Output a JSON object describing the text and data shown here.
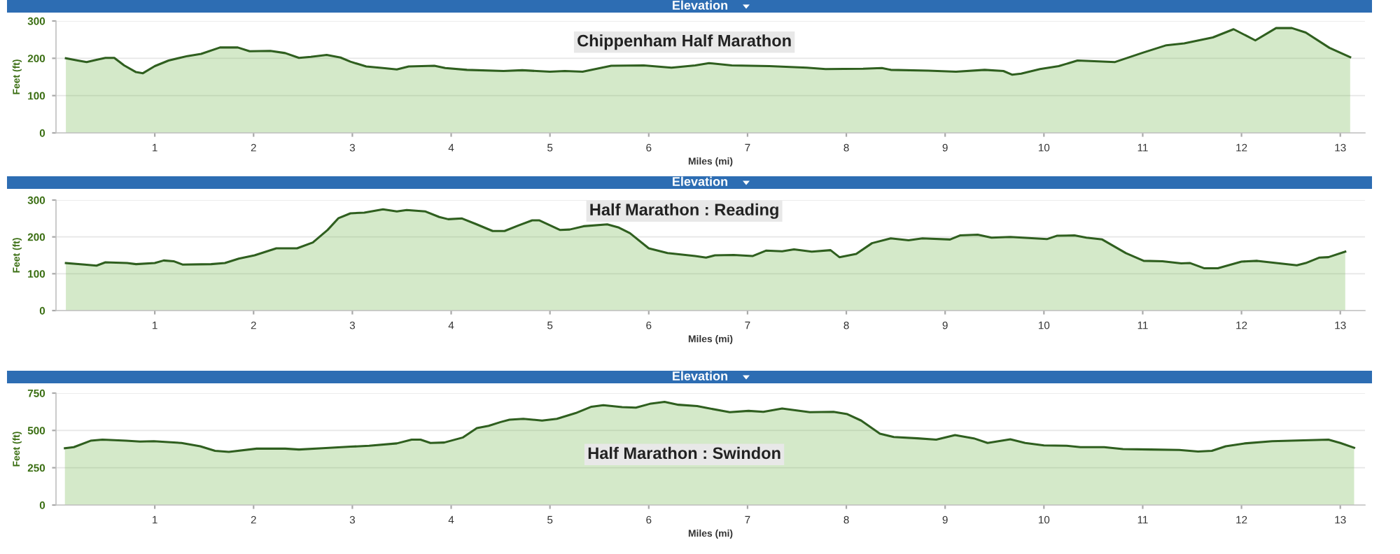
{
  "chart_data": [
    {
      "type": "area",
      "title": "Elevation",
      "subtitle": "Chippenham Half Marathon",
      "xlabel": "Miles (mi)",
      "ylabel": "Feet (ft)",
      "xlim": [
        0,
        13.25
      ],
      "xticks": [
        1,
        2,
        3,
        4,
        5,
        6,
        7,
        8,
        9,
        10,
        11,
        12,
        13
      ],
      "ylim": [
        0,
        300
      ],
      "yticks": [
        0,
        100,
        200,
        300
      ],
      "grid": "y",
      "legend": false,
      "marker": "none",
      "line_style": "solid",
      "series": [
        {
          "color": "#2f5f1f",
          "x": [
            0.1,
            0.22,
            0.31,
            0.41,
            0.5,
            0.59,
            0.69,
            0.81,
            0.88,
            1.0,
            1.14,
            1.33,
            1.47,
            1.66,
            1.84,
            1.96,
            2.17,
            2.32,
            2.46,
            2.58,
            2.74,
            2.88,
            2.98,
            3.14,
            3.31,
            3.45,
            3.57,
            3.83,
            3.94,
            4.16,
            4.53,
            4.72,
            5.0,
            5.15,
            5.33,
            5.62,
            5.95,
            6.23,
            6.47,
            6.61,
            6.84,
            7.22,
            7.6,
            7.79,
            8.17,
            8.36,
            8.45,
            8.83,
            9.11,
            9.4,
            9.59,
            9.68,
            9.77,
            9.96,
            10.15,
            10.34,
            10.72,
            11.0,
            11.24,
            11.42,
            11.71,
            11.92,
            12.14,
            12.35,
            12.51,
            12.65,
            12.89,
            13.1
          ],
          "values": [
            200,
            194,
            190,
            196,
            201,
            201,
            181,
            163,
            160,
            179,
            194,
            206,
            212,
            229,
            229,
            219,
            220,
            214,
            201,
            204,
            209,
            202,
            191,
            178,
            174,
            170,
            178,
            180,
            174,
            169,
            166,
            168,
            164,
            166,
            164,
            180,
            181,
            175,
            181,
            187,
            181,
            179,
            175,
            171,
            172,
            174,
            169,
            167,
            164,
            169,
            166,
            156,
            159,
            171,
            179,
            194,
            190,
            215,
            235,
            240,
            256,
            278,
            248,
            281,
            281,
            269,
            228,
            203
          ]
        }
      ]
    },
    {
      "type": "area",
      "title": "Elevation",
      "subtitle": "Half Marathon : Reading",
      "xlabel": "Miles (mi)",
      "ylabel": "Feet (ft)",
      "xlim": [
        0,
        13.25
      ],
      "xticks": [
        1,
        2,
        3,
        4,
        5,
        6,
        7,
        8,
        9,
        10,
        11,
        12,
        13
      ],
      "ylim": [
        0,
        300
      ],
      "yticks": [
        0,
        100,
        200,
        300
      ],
      "grid": "y",
      "legend": false,
      "marker": "none",
      "line_style": "solid",
      "series": [
        {
          "color": "#2f5f1f",
          "x": [
            0.1,
            0.29,
            0.41,
            0.5,
            0.72,
            0.81,
            1.0,
            1.09,
            1.19,
            1.28,
            1.57,
            1.71,
            1.85,
            2.01,
            2.23,
            2.44,
            2.6,
            2.75,
            2.86,
            2.98,
            3.12,
            3.31,
            3.45,
            3.55,
            3.74,
            3.88,
            3.97,
            4.11,
            4.25,
            4.42,
            4.54,
            4.68,
            4.82,
            4.89,
            5.1,
            5.2,
            5.34,
            5.58,
            5.69,
            5.81,
            6.0,
            6.19,
            6.47,
            6.58,
            6.67,
            6.86,
            7.05,
            7.19,
            7.35,
            7.47,
            7.65,
            7.84,
            7.93,
            8.1,
            8.26,
            8.45,
            8.63,
            8.77,
            9.05,
            9.15,
            9.33,
            9.47,
            9.66,
            10.03,
            10.13,
            10.31,
            10.43,
            10.59,
            10.83,
            11.01,
            11.2,
            11.39,
            11.48,
            11.62,
            11.76,
            12.0,
            12.16,
            12.32,
            12.56,
            12.65,
            12.79,
            12.88,
            13.05
          ],
          "values": [
            129,
            125,
            122,
            131,
            129,
            126,
            129,
            136,
            134,
            125,
            126,
            129,
            141,
            150,
            169,
            169,
            185,
            219,
            251,
            264,
            266,
            275,
            269,
            273,
            269,
            254,
            248,
            250,
            235,
            216,
            216,
            231,
            245,
            245,
            219,
            220,
            229,
            234,
            226,
            210,
            169,
            156,
            148,
            144,
            150,
            151,
            148,
            163,
            161,
            166,
            160,
            164,
            145,
            154,
            183,
            196,
            191,
            196,
            193,
            204,
            206,
            198,
            200,
            194,
            203,
            204,
            198,
            193,
            156,
            135,
            134,
            128,
            129,
            115,
            115,
            133,
            135,
            130,
            123,
            129,
            144,
            145,
            160
          ]
        }
      ]
    },
    {
      "type": "area",
      "title": "Elevation",
      "subtitle": "Half Marathon : Swindon",
      "xlabel": "Miles (mi)",
      "ylabel": "Feet (ft)",
      "xlim": [
        0,
        13.25
      ],
      "xticks": [
        1,
        2,
        3,
        4,
        5,
        6,
        7,
        8,
        9,
        10,
        11,
        12,
        13
      ],
      "ylim": [
        0,
        750
      ],
      "yticks": [
        0,
        250,
        500,
        750
      ],
      "grid": "y",
      "legend": false,
      "marker": "none",
      "line_style": "solid",
      "series": [
        {
          "color": "#2f5f1f",
          "x": [
            0.09,
            0.18,
            0.35,
            0.47,
            0.71,
            0.85,
            0.99,
            1.27,
            1.46,
            1.61,
            1.75,
            2.03,
            2.32,
            2.46,
            2.7,
            2.98,
            3.17,
            3.45,
            3.6,
            3.69,
            3.79,
            3.93,
            4.12,
            4.26,
            4.38,
            4.5,
            4.59,
            4.73,
            4.92,
            5.07,
            5.26,
            5.42,
            5.54,
            5.73,
            5.87,
            6.01,
            6.16,
            6.3,
            6.49,
            6.59,
            6.82,
            7.01,
            7.16,
            7.35,
            7.63,
            7.87,
            8.01,
            8.15,
            8.34,
            8.48,
            8.72,
            8.91,
            9.1,
            9.29,
            9.43,
            9.66,
            9.81,
            10.0,
            10.23,
            10.37,
            10.61,
            10.8,
            11.08,
            11.37,
            11.56,
            11.7,
            11.84,
            12.03,
            12.31,
            12.5,
            12.88,
            13.0,
            13.14
          ],
          "values": [
            381,
            388,
            431,
            438,
            431,
            425,
            428,
            416,
            394,
            363,
            356,
            378,
            378,
            372,
            381,
            391,
            397,
            413,
            438,
            438,
            416,
            419,
            453,
            516,
            531,
            556,
            572,
            578,
            566,
            578,
            616,
            659,
            669,
            656,
            653,
            678,
            691,
            672,
            663,
            650,
            622,
            631,
            625,
            647,
            622,
            625,
            609,
            566,
            478,
            456,
            447,
            438,
            469,
            447,
            416,
            441,
            416,
            400,
            397,
            388,
            388,
            375,
            372,
            369,
            359,
            363,
            394,
            413,
            428,
            431,
            438,
            416,
            384
          ]
        }
      ]
    }
  ]
}
